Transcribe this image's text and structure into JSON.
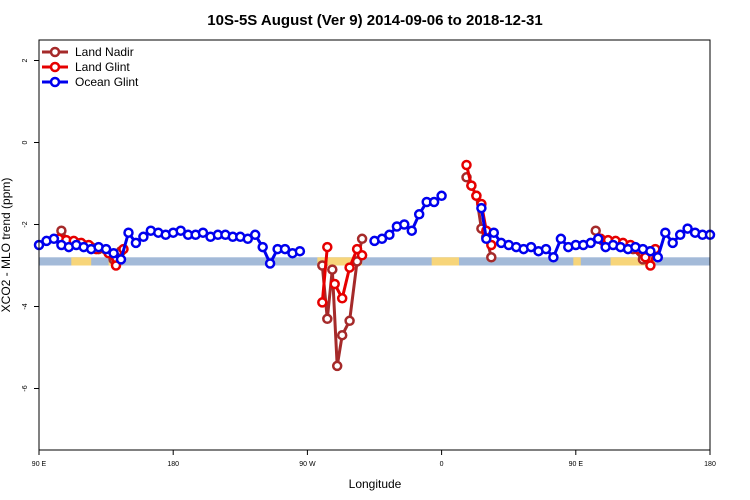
{
  "chart_data": {
    "type": "line",
    "title": "10S-5S August (Ver 9)   2014-09-06 to 2018-12-31",
    "xlabel": "Longitude",
    "ylabel": "XCO2 - MLO trend (ppm)",
    "xlim": [
      -90,
      180
    ],
    "ylim": [
      -7.5,
      2.5
    ],
    "x_ticks": [
      {
        "value": -90,
        "label": "90 E"
      },
      {
        "value": -36,
        "label": "180"
      },
      {
        "value": 18,
        "label": "90 W"
      },
      {
        "value": 72,
        "label": "0"
      },
      {
        "value": 126,
        "label": "90 E"
      },
      {
        "value": 180,
        "label": "180"
      }
    ],
    "y_ticks": [
      {
        "value": -6,
        "label": "-6"
      },
      {
        "value": -4,
        "label": "-4"
      },
      {
        "value": -2,
        "label": "-2"
      },
      {
        "value": 0,
        "label": "0"
      },
      {
        "value": 2,
        "label": "2"
      }
    ],
    "legend_position": "top-left",
    "series": [
      {
        "name": "Land Nadir",
        "color": "#a52a2a",
        "segments": [
          [
            [
              -81,
              -2.15
            ],
            [
              -78,
              -2.42
            ],
            [
              -75,
              -2.45
            ],
            [
              -72,
              -2.5
            ],
            [
              -69,
              -2.55
            ],
            [
              -66,
              -2.6
            ],
            [
              -60,
              -2.85
            ],
            [
              -57,
              -2.65
            ]
          ],
          [
            [
              24,
              -3.0
            ],
            [
              26,
              -4.3
            ],
            [
              28,
              -3.1
            ],
            [
              30,
              -5.45
            ],
            [
              32,
              -4.7
            ],
            [
              35,
              -4.35
            ],
            [
              38,
              -2.9
            ],
            [
              40,
              -2.35
            ]
          ],
          [
            [
              82,
              -0.85
            ],
            [
              84,
              -1.05
            ],
            [
              86,
              -1.3
            ],
            [
              88,
              -2.1
            ],
            [
              90,
              -2.3
            ],
            [
              92,
              -2.8
            ]
          ],
          [
            [
              134,
              -2.15
            ],
            [
              137,
              -2.4
            ],
            [
              140,
              -2.45
            ],
            [
              143,
              -2.5
            ],
            [
              146,
              -2.55
            ],
            [
              149,
              -2.6
            ],
            [
              153,
              -2.85
            ],
            [
              156,
              -2.65
            ]
          ]
        ]
      },
      {
        "name": "Land Glint",
        "color": "#e60000",
        "segments": [
          [
            [
              -82,
              -2.35
            ],
            [
              -79,
              -2.38
            ],
            [
              -76,
              -2.4
            ],
            [
              -73,
              -2.45
            ],
            [
              -70,
              -2.5
            ],
            [
              -67,
              -2.6
            ],
            [
              -62,
              -2.7
            ],
            [
              -59,
              -3.0
            ],
            [
              -56,
              -2.6
            ]
          ],
          [
            [
              24,
              -3.9
            ],
            [
              26,
              -2.55
            ]
          ],
          [
            [
              29,
              -3.45
            ],
            [
              32,
              -3.8
            ],
            [
              35,
              -3.05
            ],
            [
              38,
              -2.6
            ],
            [
              40,
              -2.75
            ]
          ],
          [
            [
              82,
              -0.55
            ],
            [
              84,
              -1.05
            ],
            [
              86,
              -1.3
            ],
            [
              88,
              -1.5
            ],
            [
              90,
              -2.15
            ],
            [
              92,
              -2.5
            ]
          ],
          [
            [
              136,
              -2.35
            ],
            [
              139,
              -2.38
            ],
            [
              142,
              -2.4
            ],
            [
              145,
              -2.45
            ],
            [
              148,
              -2.5
            ],
            [
              151,
              -2.6
            ],
            [
              154,
              -2.8
            ],
            [
              156,
              -3.0
            ],
            [
              158,
              -2.6
            ]
          ]
        ]
      },
      {
        "name": "Ocean Glint",
        "color": "#0000ee",
        "segments": [
          [
            [
              -90,
              -2.5
            ],
            [
              -87,
              -2.4
            ],
            [
              -84,
              -2.35
            ],
            [
              -81,
              -2.5
            ],
            [
              -78,
              -2.55
            ],
            [
              -75,
              -2.5
            ],
            [
              -72,
              -2.55
            ],
            [
              -69,
              -2.6
            ],
            [
              -66,
              -2.55
            ],
            [
              -63,
              -2.6
            ],
            [
              -60,
              -2.7
            ],
            [
              -57,
              -2.85
            ],
            [
              -54,
              -2.2
            ],
            [
              -51,
              -2.45
            ],
            [
              -48,
              -2.3
            ],
            [
              -45,
              -2.15
            ],
            [
              -42,
              -2.2
            ],
            [
              -39,
              -2.25
            ],
            [
              -36,
              -2.2
            ],
            [
              -33,
              -2.15
            ],
            [
              -30,
              -2.25
            ],
            [
              -27,
              -2.25
            ],
            [
              -24,
              -2.2
            ],
            [
              -21,
              -2.3
            ],
            [
              -18,
              -2.25
            ],
            [
              -15,
              -2.25
            ],
            [
              -12,
              -2.3
            ],
            [
              -9,
              -2.3
            ],
            [
              -6,
              -2.35
            ],
            [
              -3,
              -2.25
            ],
            [
              0,
              -2.55
            ],
            [
              3,
              -2.95
            ],
            [
              6,
              -2.6
            ],
            [
              9,
              -2.6
            ],
            [
              12,
              -2.7
            ],
            [
              15,
              -2.65
            ]
          ],
          [
            [
              45,
              -2.4
            ],
            [
              48,
              -2.35
            ],
            [
              51,
              -2.25
            ],
            [
              54,
              -2.05
            ],
            [
              57,
              -2.0
            ],
            [
              60,
              -2.15
            ],
            [
              63,
              -1.75
            ],
            [
              66,
              -1.45
            ],
            [
              69,
              -1.45
            ],
            [
              72,
              -1.3
            ]
          ],
          [
            [
              88,
              -1.6
            ],
            [
              90,
              -2.35
            ],
            [
              93,
              -2.2
            ],
            [
              96,
              -2.45
            ],
            [
              99,
              -2.5
            ],
            [
              102,
              -2.55
            ],
            [
              105,
              -2.6
            ],
            [
              108,
              -2.55
            ],
            [
              111,
              -2.65
            ],
            [
              114,
              -2.6
            ],
            [
              117,
              -2.8
            ],
            [
              120,
              -2.35
            ],
            [
              123,
              -2.55
            ],
            [
              126,
              -2.5
            ],
            [
              129,
              -2.5
            ],
            [
              132,
              -2.45
            ],
            [
              135,
              -2.35
            ],
            [
              138,
              -2.55
            ],
            [
              141,
              -2.5
            ],
            [
              144,
              -2.55
            ],
            [
              147,
              -2.6
            ],
            [
              150,
              -2.55
            ],
            [
              153,
              -2.6
            ],
            [
              156,
              -2.65
            ],
            [
              159,
              -2.8
            ],
            [
              162,
              -2.2
            ],
            [
              165,
              -2.45
            ],
            [
              168,
              -2.25
            ],
            [
              171,
              -2.1
            ],
            [
              174,
              -2.2
            ],
            [
              177,
              -2.25
            ],
            [
              180,
              -2.25
            ]
          ]
        ]
      }
    ],
    "map_strip": {
      "y_range": [
        -3.0,
        -2.8
      ],
      "ocean_color": "#a3bad8",
      "land_color": "#f7d57a",
      "land_spans": [
        [
          -77,
          -69
        ],
        [
          -62,
          -58
        ],
        [
          22,
          40
        ],
        [
          68,
          79
        ],
        [
          125,
          128
        ],
        [
          140,
          158
        ]
      ]
    }
  }
}
